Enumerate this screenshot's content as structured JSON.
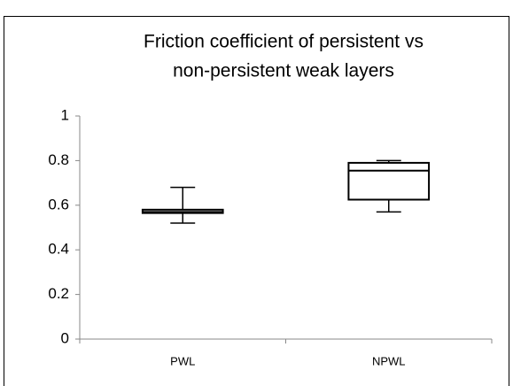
{
  "chart_data": {
    "type": "box",
    "title": [
      "Friction coefficient of persistent vs",
      "non-persistent weak layers"
    ],
    "categories": [
      "PWL",
      "NPWL"
    ],
    "min": [
      0.52,
      0.57
    ],
    "q1": [
      0.565,
      0.625
    ],
    "median": [
      0.57,
      0.755
    ],
    "q3": [
      0.58,
      0.79
    ],
    "max": [
      0.68,
      0.8
    ],
    "color": "#000000",
    "ylim": [
      0,
      1
    ],
    "yticks": [
      0,
      0.2,
      0.4,
      0.6,
      0.8,
      1
    ],
    "grid": false
  }
}
